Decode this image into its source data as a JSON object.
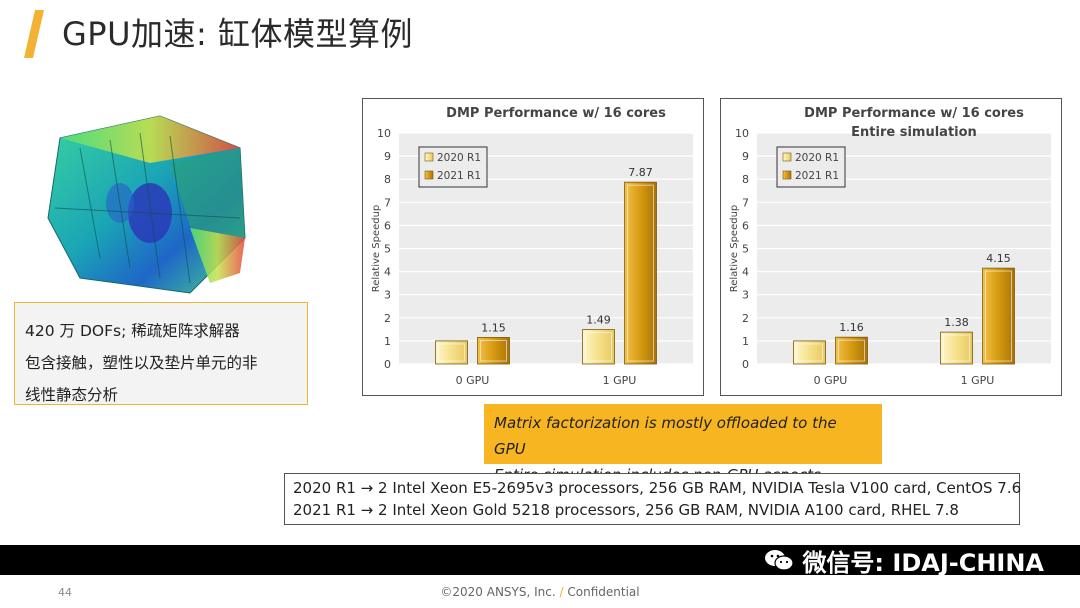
{
  "title": "GPU加速: 缸体模型算例",
  "accent_color": "#f2b233",
  "info_box": {
    "lines": [
      "420 万 DOFs; 稀疏矩阵求解器",
      "包含接触，塑性以及垫片单元的非",
      "线性静态分析"
    ]
  },
  "callout": {
    "lines": [
      "Matrix factorization is mostly offloaded to the GPU",
      "Entire simulation includes non-GPU aspects"
    ]
  },
  "specs": {
    "lines": [
      "2020 R1 → 2 Intel Xeon E5-2695v3 processors, 256 GB RAM, NVIDIA Tesla V100 card, CentOS 7.6",
      "2021 R1 → 2 Intel Xeon Gold 5218 processors, 256 GB RAM, NVIDIA A100 card, RHEL 7.8"
    ]
  },
  "footer": {
    "slide_number": "44",
    "copyright": "©2020 ANSYS, Inc.",
    "separator": "/",
    "confidential": "Confidential",
    "watermark": "微信号: IDAJ-CHINA"
  },
  "icons": [
    "wechat-icon",
    "title-accent-icon"
  ],
  "chart_data": [
    {
      "type": "bar",
      "title": "DMP Performance w/ 16 cores",
      "subtitle": "",
      "categories": [
        "0 GPU",
        "1 GPU"
      ],
      "series": [
        {
          "name": "2020 R1",
          "values": [
            1.0,
            1.49
          ],
          "labels": [
            "",
            "1.49"
          ],
          "color": "#f6e08a"
        },
        {
          "name": "2021 R1",
          "values": [
            1.15,
            7.87
          ],
          "labels": [
            "1.15",
            "7.87"
          ],
          "color": "#d69a10"
        }
      ],
      "xlabel": "",
      "ylabel": "Relative Speedup",
      "ylim": [
        0,
        10
      ],
      "yticks": [
        0,
        1,
        2,
        3,
        4,
        5,
        6,
        7,
        8,
        9,
        10
      ],
      "grid": true,
      "legend_position": "top-left"
    },
    {
      "type": "bar",
      "title": "DMP Performance w/ 16 cores",
      "subtitle": "Entire simulation",
      "categories": [
        "0 GPU",
        "1 GPU"
      ],
      "series": [
        {
          "name": "2020 R1",
          "values": [
            1.0,
            1.38
          ],
          "labels": [
            "",
            "1.38"
          ],
          "color": "#f6e08a"
        },
        {
          "name": "2021 R1",
          "values": [
            1.16,
            4.15
          ],
          "labels": [
            "1.16",
            "4.15"
          ],
          "color": "#d69a10"
        }
      ],
      "xlabel": "",
      "ylabel": "Relative Speedup",
      "ylim": [
        0,
        10
      ],
      "yticks": [
        0,
        1,
        2,
        3,
        4,
        5,
        6,
        7,
        8,
        9,
        10
      ],
      "grid": true,
      "legend_position": "top-left"
    }
  ]
}
